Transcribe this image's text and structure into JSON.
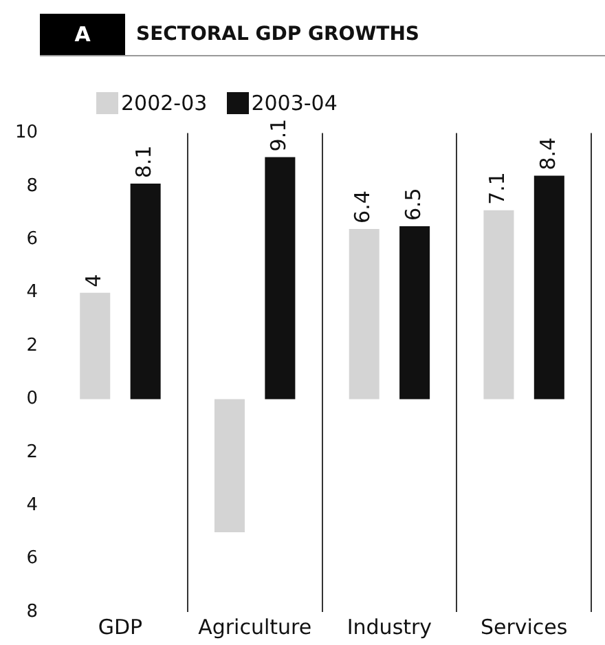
{
  "chart_data": {
    "type": "bar",
    "title": "SECTORAL GDP GROWTHS",
    "annotations": [
      "A"
    ],
    "categories": [
      "GDP",
      "Agriculture",
      "Industry",
      "Services"
    ],
    "series": [
      {
        "name": "2002-03",
        "color": "#d4d4d4",
        "values": [
          4,
          -5.0,
          6.4,
          7.1
        ],
        "value_labels": [
          "4",
          null,
          "6.4",
          "7.1"
        ]
      },
      {
        "name": "2003-04",
        "color": "#111111",
        "values": [
          8.1,
          9.1,
          6.5,
          8.4
        ],
        "value_labels": [
          "8.1",
          "9.1",
          "6.5",
          "8.4"
        ]
      }
    ],
    "ylim": [
      -8,
      10
    ],
    "yticks": [
      {
        "value": -8,
        "label": "8"
      },
      {
        "value": -6,
        "label": "6"
      },
      {
        "value": -4,
        "label": "4"
      },
      {
        "value": -2,
        "label": "2"
      },
      0,
      2,
      4,
      6,
      8,
      10
    ],
    "grid": "x",
    "legend": "top left"
  }
}
